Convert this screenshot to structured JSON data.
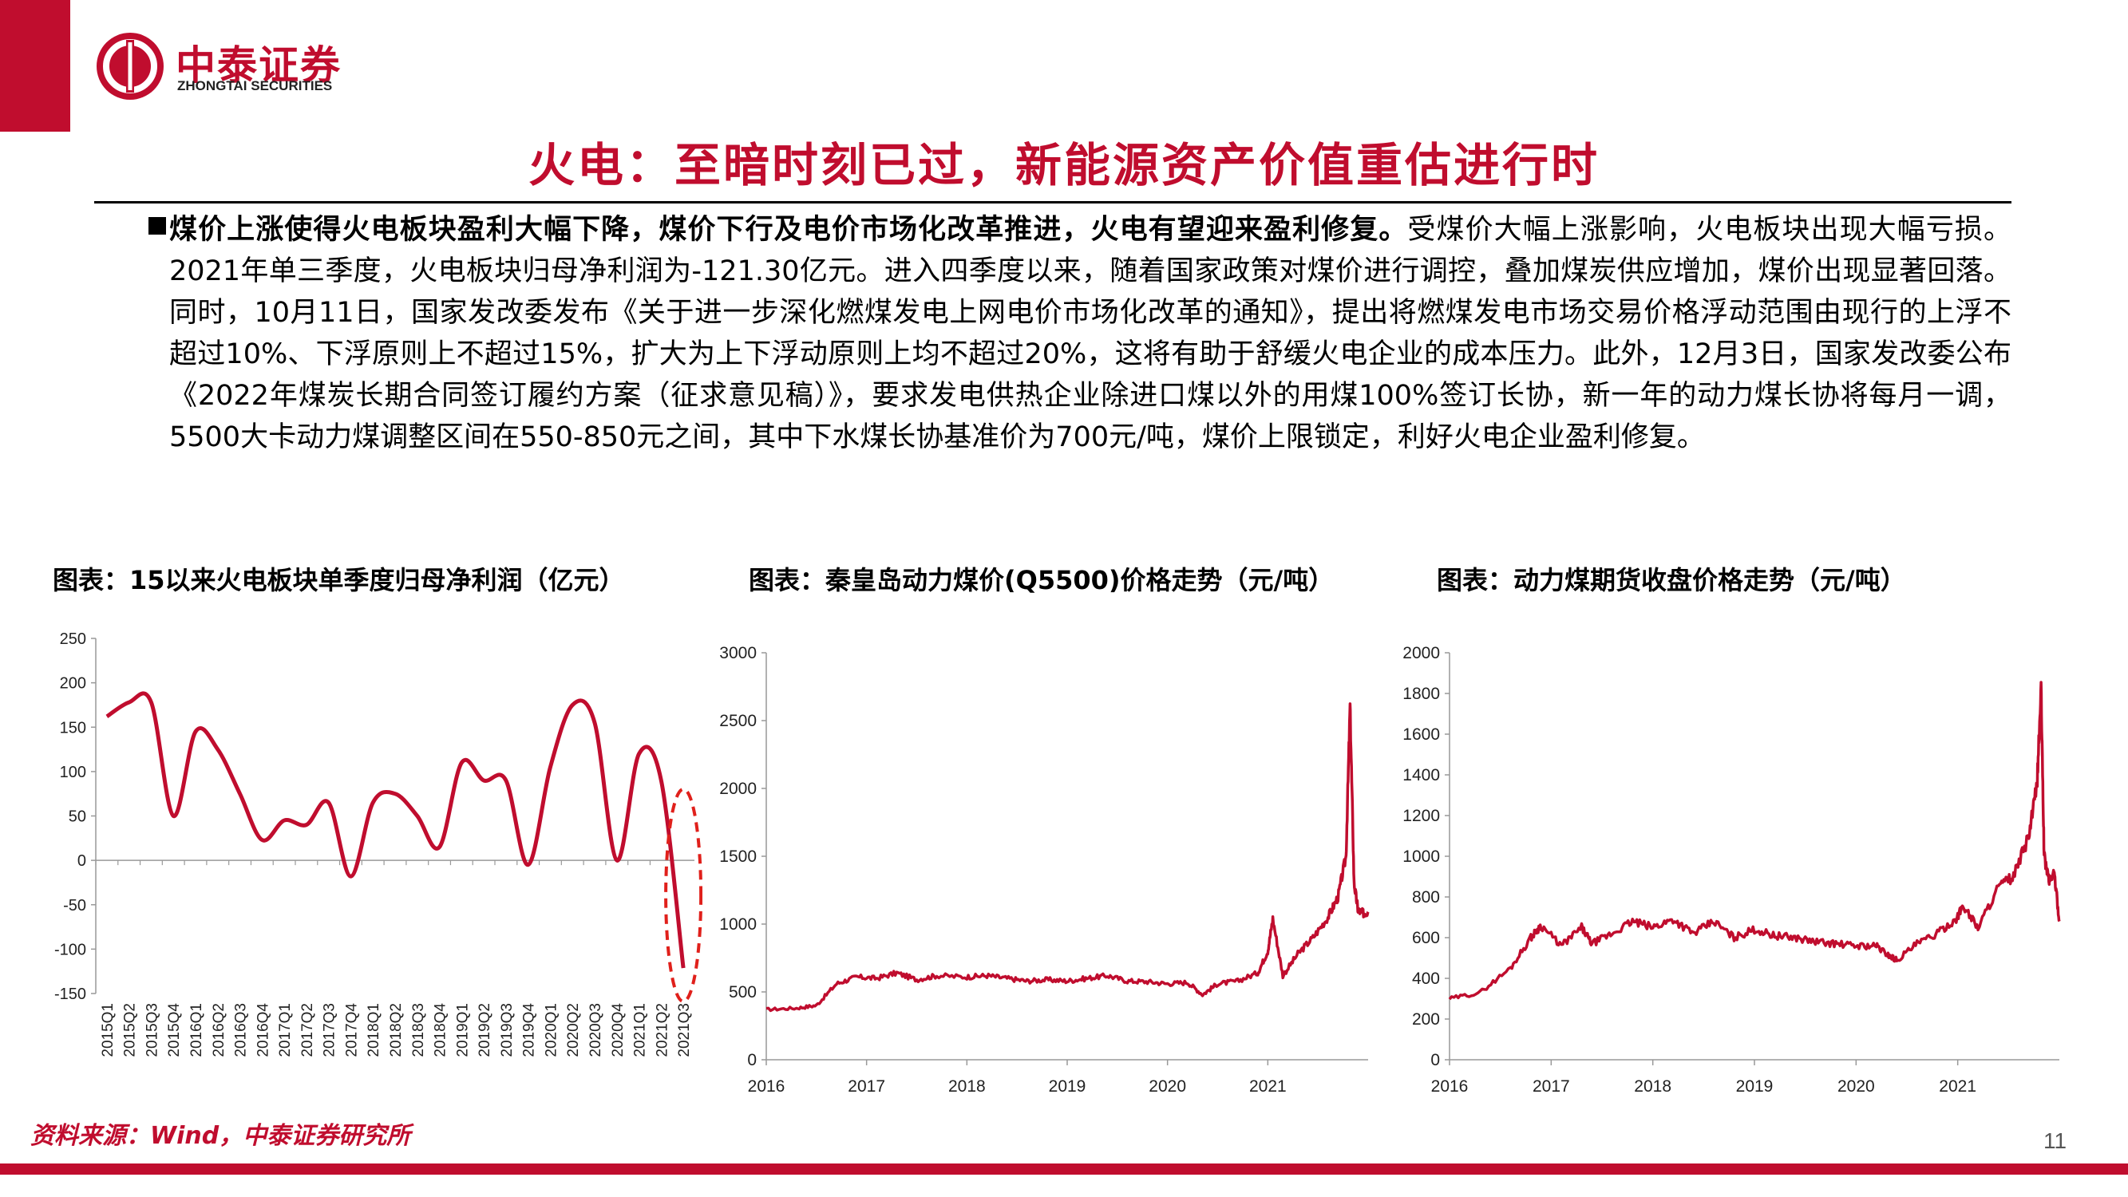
{
  "brand": {
    "name_cn": "中泰证券",
    "name_en": "ZHONGTAI SECURITIES",
    "color": "#c00d2e"
  },
  "title": "火电：至暗时刻已过，新能源资产价值重估进行时",
  "paragraph": {
    "bold_lead": "煤价上涨使得火电板块盈利大幅下降，煤价下行及电价市场化改革推进，火电有望迎来盈利修复。",
    "body": "受煤价大幅上涨影响，火电板块出现大幅亏损。2021年单三季度，火电板块归母净利润为-121.30亿元。进入四季度以来，随着国家政策对煤价进行调控，叠加煤炭供应增加，煤价出现显著回落。同时，10月11日，国家发改委发布《关于进一步深化燃煤发电上网电价市场化改革的通知》，提出将燃煤发电市场交易价格浮动范围由现行的上浮不超过10%、下浮原则上不超过15%，扩大为上下浮动原则上均不超过20%，这将有助于舒缓火电企业的成本压力。此外，12月3日，国家发改委公布《2022年煤炭长期合同签订履约方案（征求意见稿）》，要求发电供热企业除进口煤以外的用煤100%签订长协，新一年的动力煤长协将每月一调，5500大卡动力煤调整区间在550-850元之间，其中下水煤长协基准价为700元/吨，煤价上限锁定，利好火电企业盈利修复。"
  },
  "captions": {
    "chart1": "图表：15以来火电板块单季度归母净利润（亿元）",
    "chart2": "图表：秦皇岛动力煤价(Q5500)价格走势（元/吨）",
    "chart3": "图表：动力煤期货收盘价格走势（元/吨）"
  },
  "source": "资料来源：Wind，中泰证券研究所",
  "page_number": "11",
  "chart_data": [
    {
      "type": "line",
      "title": "图表：15以来火电板块单季度归母净利润（亿元）",
      "categories": [
        "2015Q1",
        "2015Q2",
        "2015Q3",
        "2015Q4",
        "2016Q1",
        "2016Q2",
        "2016Q3",
        "2016Q4",
        "2017Q1",
        "2017Q2",
        "2017Q3",
        "2017Q4",
        "2018Q1",
        "2018Q2",
        "2018Q3",
        "2018Q4",
        "2019Q1",
        "2019Q2",
        "2019Q3",
        "2019Q4",
        "2020Q1",
        "2020Q2",
        "2020Q3",
        "2020Q4",
        "2021Q1",
        "2021Q2",
        "2021Q3"
      ],
      "values": [
        162,
        178,
        178,
        50,
        145,
        125,
        75,
        23,
        45,
        40,
        65,
        -18,
        65,
        75,
        50,
        15,
        110,
        90,
        90,
        -5,
        105,
        175,
        155,
        0,
        120,
        90,
        -121.3
      ],
      "ylim": [
        -150,
        250
      ],
      "yticks": [
        250,
        200,
        150,
        100,
        50,
        0,
        -50,
        -100,
        -150
      ],
      "color": "#c00d2e",
      "annotation": "red dashed ellipse highlighting 2021Q3"
    },
    {
      "type": "line",
      "title": "图表：秦皇岛动力煤价(Q5500)价格走势（元/吨）",
      "x_ticks": [
        "2016",
        "2017",
        "2018",
        "2019",
        "2020",
        "2021"
      ],
      "ylim": [
        0,
        3000
      ],
      "yticks": [
        3000,
        2500,
        2000,
        1500,
        1000,
        500,
        0
      ],
      "color": "#c00d2e",
      "series": [
        {
          "x": [
            2016.0,
            2016.3,
            2016.5,
            2016.7,
            2016.9,
            2017.1,
            2017.3,
            2017.5,
            2017.7,
            2018.0,
            2018.2,
            2018.4,
            2018.6,
            2018.8,
            2019.0,
            2019.2,
            2019.4,
            2019.6,
            2019.8,
            2020.0,
            2020.2,
            2020.35,
            2020.5,
            2020.7,
            2020.9,
            2021.0,
            2021.05,
            2021.15,
            2021.3,
            2021.45,
            2021.6,
            2021.7,
            2021.78,
            2021.82,
            2021.86,
            2021.9,
            2021.95,
            2022.0
          ],
          "y": [
            370,
            380,
            400,
            560,
            610,
            600,
            640,
            590,
            620,
            610,
            620,
            600,
            580,
            590,
            580,
            600,
            620,
            580,
            575,
            560,
            570,
            480,
            560,
            580,
            640,
            800,
            1040,
            620,
            780,
            900,
            1050,
            1200,
            1500,
            2600,
            1300,
            1100,
            1080,
            1090
          ]
        }
      ]
    },
    {
      "type": "line",
      "title": "图表：动力煤期货收盘价格走势（元/吨）",
      "x_ticks": [
        "2016",
        "2017",
        "2018",
        "2019",
        "2020",
        "2021"
      ],
      "ylim": [
        0,
        2000
      ],
      "yticks": [
        2000,
        1800,
        1600,
        1400,
        1200,
        1000,
        800,
        600,
        400,
        200,
        0
      ],
      "color": "#c00d2e",
      "series": [
        {
          "x": [
            2016.0,
            2016.3,
            2016.6,
            2016.8,
            2016.9,
            2017.1,
            2017.3,
            2017.4,
            2017.6,
            2017.8,
            2018.0,
            2018.2,
            2018.4,
            2018.6,
            2018.8,
            2019.0,
            2019.2,
            2019.4,
            2019.6,
            2019.8,
            2020.0,
            2020.2,
            2020.3,
            2020.4,
            2020.6,
            2020.8,
            2021.0,
            2021.05,
            2021.2,
            2021.4,
            2021.55,
            2021.7,
            2021.78,
            2021.82,
            2021.85,
            2021.9,
            2021.95,
            2022.0
          ],
          "y": [
            300,
            330,
            450,
            600,
            660,
            560,
            650,
            570,
            620,
            680,
            650,
            690,
            620,
            680,
            600,
            640,
            610,
            600,
            580,
            570,
            560,
            560,
            520,
            490,
            570,
            620,
            700,
            760,
            650,
            850,
            900,
            1100,
            1350,
            1820,
            1000,
            880,
            920,
            680
          ]
        }
      ]
    }
  ]
}
